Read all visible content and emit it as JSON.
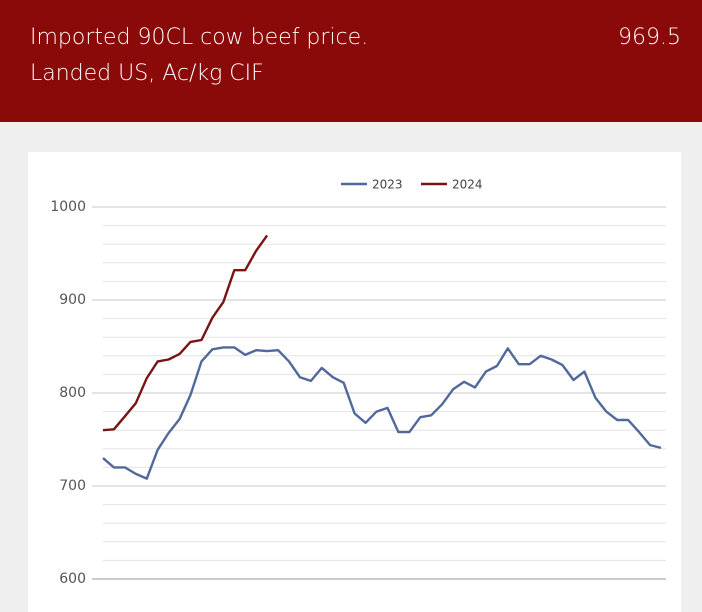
{
  "chart_data": {
    "type": "line",
    "title": "Imported 90CL cow beef price. Landed US, Ac/kg CIF",
    "latest_value": "969.5",
    "categories": [
      null,
      null,
      null,
      null,
      null,
      null,
      null,
      null,
      null,
      null,
      null,
      null,
      null,
      null,
      null,
      null,
      null,
      null,
      null,
      null,
      null,
      null,
      null,
      null,
      null,
      null,
      null,
      null,
      null,
      null,
      null,
      null,
      null,
      null,
      null,
      null,
      null,
      null,
      null,
      null,
      null,
      null,
      null,
      null,
      null,
      null,
      null,
      null,
      null,
      null,
      null,
      null
    ],
    "series": [
      {
        "name": "2023",
        "color": "#51699a",
        "values": [
          730,
          720,
          720,
          713,
          708,
          739,
          757,
          772,
          798,
          834,
          847,
          849,
          849,
          841,
          846,
          845,
          846,
          834,
          817,
          813,
          827,
          817,
          811,
          778,
          768,
          780,
          784,
          758,
          758,
          774,
          776,
          788,
          804,
          812,
          806,
          823,
          829,
          848,
          831,
          831,
          840,
          836,
          830,
          814,
          823,
          795,
          780,
          771,
          771,
          758,
          744,
          741
        ]
      },
      {
        "name": "2024",
        "color": "#7a1414",
        "values": [
          760,
          761,
          775,
          789,
          816,
          834,
          836,
          842,
          855,
          857,
          881,
          898,
          932,
          932,
          953,
          969.5,
          null,
          null,
          null,
          null,
          null,
          null,
          null,
          null,
          null,
          null,
          null,
          null,
          null,
          null,
          null,
          null,
          null,
          null,
          null,
          null,
          null,
          null,
          null,
          null,
          null,
          null,
          null,
          null,
          null,
          null,
          null,
          null,
          null,
          null,
          null,
          null
        ]
      }
    ],
    "ylim": [
      600,
      1000
    ],
    "yticks": [
      600,
      700,
      800,
      900,
      1000
    ],
    "minor_yticks": [
      620,
      640,
      660,
      680,
      720,
      740,
      760,
      780,
      820,
      840,
      860,
      880,
      920,
      940,
      960,
      980
    ],
    "grid": true,
    "legend": "top"
  }
}
